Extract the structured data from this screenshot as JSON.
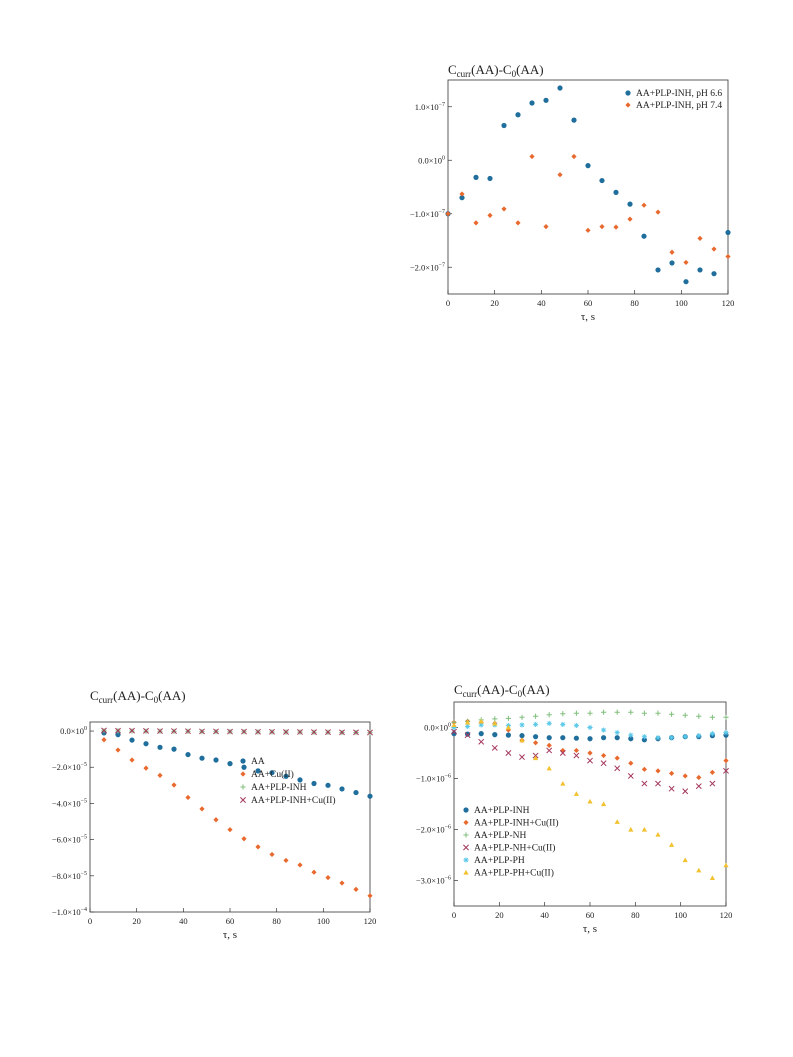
{
  "colors": {
    "blue": "#1f6e9c",
    "orange": "#e8692d",
    "green": "#7fbf7b",
    "purple": "#a4365c",
    "cyan": "#5bc8e8",
    "yellow": "#f2c12e"
  },
  "chart_data": [
    {
      "type": "scatter",
      "title_main": "C",
      "title_sub1": "curr",
      "title_mid": "(AA)-C",
      "title_sub2": "0",
      "title_end": "(AA)",
      "xlabel": "τ, s",
      "xlim": [
        0,
        120
      ],
      "ylim": [
        -2.5e-07,
        1.5e-07
      ],
      "xticks": [
        "0",
        "20",
        "40",
        "60",
        "80",
        "100",
        "120"
      ],
      "yticks": [
        {
          "v": 1e-07,
          "m": "1.0×10",
          "e": "−7"
        },
        {
          "v": 0,
          "m": "0.0×10",
          "e": "0"
        },
        {
          "v": -1e-07,
          "m": "−1.0×10",
          "e": "−7"
        },
        {
          "v": -2e-07,
          "m": "−2.0×10",
          "e": "−7"
        }
      ],
      "legend_position": "top-right",
      "series": [
        {
          "name": "AA+PLP-INH, pH 6.6",
          "marker": "circle",
          "color": "#1f6e9c",
          "x": [
            0,
            6,
            12,
            18,
            24,
            30,
            36,
            42,
            48,
            54,
            60,
            66,
            72,
            78,
            84,
            90,
            96,
            102,
            108,
            114,
            120
          ],
          "y": [
            -1e-07,
            -7e-08,
            -3.2e-08,
            -3.4e-08,
            6.5e-08,
            8.5e-08,
            1.07e-07,
            1.12e-07,
            1.35e-07,
            7.5e-08,
            -1e-08,
            -3.8e-08,
            -6e-08,
            -8.2e-08,
            -1.42e-07,
            -2.05e-07,
            -1.92e-07,
            -2.27e-07,
            -2.05e-07,
            -2.12e-07,
            -1.35e-07
          ]
        },
        {
          "name": "AA+PLP-INH, pH 7.4",
          "marker": "diamond",
          "color": "#e8692d",
          "x": [
            0,
            6,
            12,
            18,
            24,
            30,
            36,
            42,
            48,
            54,
            60,
            66,
            72,
            78,
            84,
            90,
            96,
            102,
            108,
            114,
            120
          ],
          "y": [
            -1e-07,
            -6.3e-08,
            -1.17e-07,
            -1.03e-07,
            -9.1e-08,
            -1.17e-07,
            7e-09,
            -1.24e-07,
            -2.7e-08,
            7e-09,
            -1.31e-07,
            -1.24e-07,
            -1.25e-07,
            -1.1e-07,
            -8.4e-08,
            -9.7e-08,
            -1.72e-07,
            -1.91e-07,
            -1.46e-07,
            -1.66e-07,
            -1.8e-07
          ]
        }
      ]
    },
    {
      "type": "scatter",
      "title_main": "C",
      "title_sub1": "curr",
      "title_mid": "(AA)-C",
      "title_sub2": "0",
      "title_end": "(AA)",
      "xlabel": "τ, s",
      "xlim": [
        0,
        120
      ],
      "ylim": [
        -0.0001,
        5e-06
      ],
      "xticks": [
        "0",
        "20",
        "40",
        "60",
        "80",
        "100",
        "120"
      ],
      "yticks": [
        {
          "v": 0,
          "m": "0.0×10",
          "e": "0"
        },
        {
          "v": -2e-05,
          "m": "−2.0×10",
          "e": "−5"
        },
        {
          "v": -4e-05,
          "m": "−4.0×10",
          "e": "−5"
        },
        {
          "v": -6e-05,
          "m": "−6.0×10",
          "e": "−5"
        },
        {
          "v": -8e-05,
          "m": "−8.0×10",
          "e": "−5"
        },
        {
          "v": -0.0001,
          "m": "−1.0×10",
          "e": "−4"
        }
      ],
      "legend_position": "center-right",
      "series": [
        {
          "name": "AA",
          "marker": "circle",
          "color": "#1f6e9c",
          "x": [
            6,
            12,
            18,
            24,
            30,
            36,
            42,
            48,
            54,
            60,
            66,
            72,
            78,
            84,
            90,
            96,
            102,
            108,
            114,
            120
          ],
          "y": [
            -1e-06,
            -2e-06,
            -5e-06,
            -7e-06,
            -9e-06,
            -1e-05,
            -1.3e-05,
            -1.5e-05,
            -1.6e-05,
            -1.8e-05,
            -2e-05,
            -2.2e-05,
            -2.3e-05,
            -2.5e-05,
            -2.7e-05,
            -2.9e-05,
            -3e-05,
            -3.2e-05,
            -3.4e-05,
            -3.6e-05
          ]
        },
        {
          "name": "AA+Cu(II)",
          "marker": "diamond",
          "color": "#e8692d",
          "x": [
            6,
            12,
            18,
            24,
            30,
            36,
            42,
            48,
            54,
            60,
            66,
            72,
            78,
            84,
            90,
            96,
            102,
            108,
            114,
            120
          ],
          "y": [
            -4.8e-06,
            -1.05e-05,
            -1.6e-05,
            -2.05e-05,
            -2.45e-05,
            -2.98e-05,
            -3.67e-05,
            -4.3e-05,
            -4.9e-05,
            -5.45e-05,
            -5.95e-05,
            -6.4e-05,
            -6.82e-05,
            -7.15e-05,
            -7.4e-05,
            -7.8e-05,
            -8.1e-05,
            -8.4e-05,
            -8.75e-05,
            -9.1e-05
          ]
        },
        {
          "name": "AA+PLP-INH",
          "marker": "plus",
          "color": "#7fbf7b",
          "x": [
            6,
            12,
            18,
            24,
            30,
            36,
            42,
            48,
            54,
            60,
            66,
            72,
            78,
            84,
            90,
            96,
            102,
            108,
            114,
            120
          ],
          "y": [
            2e-07,
            1e-07,
            0.0,
            -1e-07,
            -1e-07,
            -2e-07,
            -2e-07,
            -3e-07,
            -3e-07,
            -4e-07,
            -4e-07,
            -5e-07,
            -5e-07,
            -6e-07,
            -6e-07,
            -7e-07,
            -7e-07,
            -8e-07,
            -8e-07,
            -9e-07
          ]
        },
        {
          "name": "AA+PLP-INH+Cu(II)",
          "marker": "cross",
          "color": "#a4365c",
          "x": [
            6,
            12,
            18,
            24,
            30,
            36,
            42,
            48,
            54,
            60,
            66,
            72,
            78,
            84,
            90,
            96,
            102,
            108,
            114,
            120
          ],
          "y": [
            3e-07,
            2e-07,
            2e-07,
            1e-07,
            0.0,
            0.0,
            -1e-07,
            -2e-07,
            -2e-07,
            -3e-07,
            -3e-07,
            -4e-07,
            -4e-07,
            -5e-07,
            -5e-07,
            -6e-07,
            -6e-07,
            -7e-07,
            -7e-07,
            -8e-07
          ]
        }
      ]
    },
    {
      "type": "scatter",
      "title_main": "C",
      "title_sub1": "curr",
      "title_mid": "(AA)-C",
      "title_sub2": "0",
      "title_end": "(AA)",
      "xlabel": "τ, s",
      "xlim": [
        0,
        120
      ],
      "ylim": [
        -3.5e-06,
        5e-07
      ],
      "xticks": [
        "0",
        "20",
        "40",
        "60",
        "80",
        "100",
        "120"
      ],
      "yticks": [
        {
          "v": 0,
          "m": "0.0×10",
          "e": "0"
        },
        {
          "v": -1e-06,
          "m": "−1.0×10",
          "e": "−6"
        },
        {
          "v": -2e-06,
          "m": "−2.0×10",
          "e": "−6"
        },
        {
          "v": -3e-06,
          "m": "−3.0×10",
          "e": "−6"
        }
      ],
      "legend_position": "bottom-left",
      "series": [
        {
          "name": "AA+PLP-INH",
          "marker": "circle",
          "color": "#1f6e9c",
          "x": [
            0,
            6,
            12,
            18,
            24,
            30,
            36,
            42,
            48,
            54,
            60,
            66,
            72,
            78,
            84,
            90,
            96,
            102,
            108,
            114,
            120
          ],
          "y": [
            -1.2e-07,
            -1.3e-07,
            -1.2e-07,
            -1.4e-07,
            -1.5e-07,
            -1.6e-07,
            -1.8e-07,
            -2e-07,
            -2e-07,
            -2.1e-07,
            -2.2e-07,
            -2e-07,
            -2e-07,
            -2.2e-07,
            -2.4e-07,
            -2.2e-07,
            -2e-07,
            -1.8e-07,
            -1.8e-07,
            -1.6e-07,
            -1.5e-07
          ]
        },
        {
          "name": "AA+PLP-INH+Cu(II)",
          "marker": "diamond",
          "color": "#e8692d",
          "x": [
            0,
            6,
            12,
            18,
            24,
            30,
            36,
            42,
            48,
            54,
            60,
            66,
            72,
            78,
            84,
            90,
            96,
            102,
            108,
            114,
            120
          ],
          "y": [
            1e-07,
            1.2e-07,
            1e-07,
            8e-08,
            -5e-08,
            -2.5e-07,
            -3e-07,
            -3.5e-07,
            -4.5e-07,
            -4.5e-07,
            -5e-07,
            -5.5e-07,
            -6e-07,
            -7e-07,
            -8.2e-07,
            -8.5e-07,
            -9e-07,
            -9.5e-07,
            -9.8e-07,
            -8.8e-07,
            -6.5e-07
          ]
        },
        {
          "name": "AA+PLP-NH",
          "marker": "plus",
          "color": "#7fbf7b",
          "x": [
            0,
            6,
            12,
            18,
            24,
            30,
            36,
            42,
            48,
            54,
            60,
            66,
            72,
            78,
            84,
            90,
            96,
            102,
            108,
            114,
            120
          ],
          "y": [
            1e-07,
            1.2e-07,
            1.5e-07,
            1.7e-07,
            1.8e-07,
            2e-07,
            2.2e-07,
            2.5e-07,
            2.7e-07,
            2.8e-07,
            2.8e-07,
            3e-07,
            3e-07,
            3e-07,
            2.8e-07,
            2.8e-07,
            2.6e-07,
            2.4e-07,
            2.2e-07,
            2e-07,
            2e-07
          ]
        },
        {
          "name": "AA+PLP-NH+Cu(II)",
          "marker": "cross",
          "color": "#a4365c",
          "x": [
            0,
            6,
            12,
            18,
            24,
            30,
            36,
            42,
            48,
            54,
            60,
            66,
            72,
            78,
            84,
            90,
            96,
            102,
            108,
            114,
            120
          ],
          "y": [
            -8e-08,
            -1.5e-07,
            -2.8e-07,
            -4e-07,
            -5e-07,
            -5.8e-07,
            -5.5e-07,
            -4.5e-07,
            -5e-07,
            -5.5e-07,
            -6.5e-07,
            -7e-07,
            -8e-07,
            -9.5e-07,
            -1.1e-06,
            -1.1e-06,
            -1.2e-06,
            -1.25e-06,
            -1.15e-06,
            -1.1e-06,
            -8.5e-07
          ]
        },
        {
          "name": "AA+PLP-PH",
          "marker": "star",
          "color": "#5bc8e8",
          "x": [
            0,
            6,
            12,
            18,
            24,
            30,
            36,
            42,
            48,
            54,
            60,
            66,
            72,
            78,
            84,
            90,
            96,
            102,
            108,
            114,
            120
          ],
          "y": [
            0.0,
            2e-08,
            5e-08,
            5e-08,
            4e-08,
            5e-08,
            6e-08,
            8e-08,
            6e-08,
            4e-08,
            0.0,
            -5e-08,
            -1e-07,
            -1.5e-07,
            -1.8e-07,
            -2e-07,
            -2e-07,
            -1.8e-07,
            -1.6e-07,
            -1.2e-07,
            -1e-07
          ]
        },
        {
          "name": "AA+PLP-PH+Cu(II)",
          "marker": "triangle",
          "color": "#f2c12e",
          "x": [
            0,
            6,
            12,
            18,
            24,
            30,
            36,
            42,
            48,
            54,
            60,
            66,
            72,
            78,
            84,
            90,
            96,
            102,
            108,
            114,
            120
          ],
          "y": [
            5e-08,
            1e-07,
            1.2e-07,
            8e-08,
            0.0,
            -2.5e-07,
            -6e-07,
            -8e-07,
            -1.1e-06,
            -1.3e-06,
            -1.45e-06,
            -1.5e-06,
            -1.85e-06,
            -2e-06,
            -2e-06,
            -2.1e-06,
            -2.3e-06,
            -2.6e-06,
            -2.8e-06,
            -2.95e-06,
            -2.7e-06
          ]
        }
      ]
    }
  ]
}
